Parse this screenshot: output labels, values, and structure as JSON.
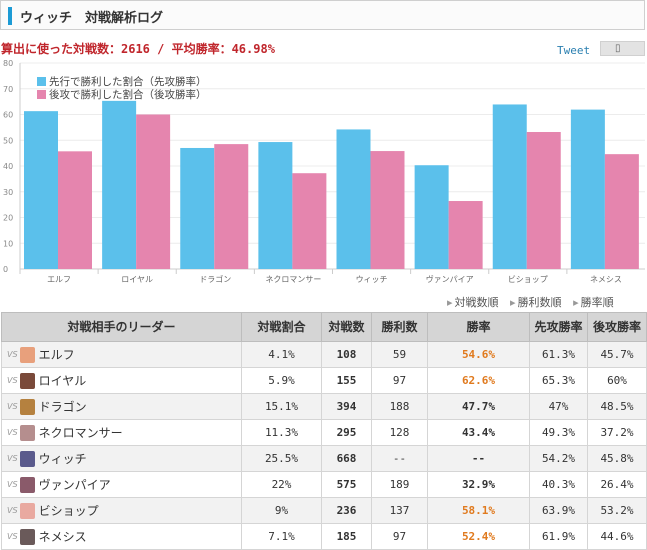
{
  "header": {
    "title": "ウィッチ　対戦解析ログ"
  },
  "stats_line": "算出に使った対戦数：2616 / 平均勝率：46.98%",
  "share": {
    "tweet": "Tweet",
    "icon": "page-icon"
  },
  "colors": {
    "first": "#5bc0eb",
    "second": "#e585ae",
    "highlight": "#e07a1e",
    "accent": "#1d9bd5"
  },
  "chart_data": {
    "type": "bar",
    "categories": [
      "エルフ",
      "ロイヤル",
      "ドラゴン",
      "ネクロマンサー",
      "ウィッチ",
      "ヴァンパイア",
      "ビショップ",
      "ネメシス"
    ],
    "series": [
      {
        "name": "先行で勝利した割合（先攻勝率）",
        "values": [
          61.3,
          65.3,
          47,
          49.3,
          54.2,
          40.3,
          63.9,
          61.9
        ]
      },
      {
        "name": "後攻で勝利した割合（後攻勝率）",
        "values": [
          45.7,
          60,
          48.5,
          37.2,
          45.8,
          26.4,
          53.2,
          44.6
        ]
      }
    ],
    "ylim": [
      0,
      80
    ],
    "yticks": [
      0,
      10,
      20,
      30,
      40,
      50,
      60,
      70,
      80
    ],
    "grid": true,
    "legend_position": "top-left"
  },
  "sort_links": [
    "対戦数順",
    "勝利数順",
    "勝率順"
  ],
  "table": {
    "headers": {
      "leader": "対戦相手のリーダー",
      "ratio": "対戦割合",
      "battles": "対戦数",
      "wins": "勝利数",
      "winrate": "勝率",
      "first": "先攻勝率",
      "second": "後攻勝率"
    },
    "vs": "VS",
    "rows": [
      {
        "name": "エルフ",
        "ratio": "4.1%",
        "battles": "108",
        "wins": "59",
        "winrate": "54.6%",
        "first": "61.3%",
        "second": "45.7%",
        "hi": true,
        "avatar": "#e8a07c"
      },
      {
        "name": "ロイヤル",
        "ratio": "5.9%",
        "battles": "155",
        "wins": "97",
        "winrate": "62.6%",
        "first": "65.3%",
        "second": "60%",
        "hi": true,
        "avatar": "#7a4a3a"
      },
      {
        "name": "ドラゴン",
        "ratio": "15.1%",
        "battles": "394",
        "wins": "188",
        "winrate": "47.7%",
        "first": "47%",
        "second": "48.5%",
        "hi": false,
        "avatar": "#b5813f"
      },
      {
        "name": "ネクロマンサー",
        "ratio": "11.3%",
        "battles": "295",
        "wins": "128",
        "winrate": "43.4%",
        "first": "49.3%",
        "second": "37.2%",
        "hi": false,
        "avatar": "#b58e8e"
      },
      {
        "name": "ウィッチ",
        "ratio": "25.5%",
        "battles": "668",
        "wins": "--",
        "winrate": "--",
        "first": "54.2%",
        "second": "45.8%",
        "hi": false,
        "avatar": "#5a5a8c"
      },
      {
        "name": "ヴァンパイア",
        "ratio": "22%",
        "battles": "575",
        "wins": "189",
        "winrate": "32.9%",
        "first": "40.3%",
        "second": "26.4%",
        "hi": false,
        "avatar": "#8a5a6a"
      },
      {
        "name": "ビショップ",
        "ratio": "9%",
        "battles": "236",
        "wins": "137",
        "winrate": "58.1%",
        "first": "63.9%",
        "second": "53.2%",
        "hi": true,
        "avatar": "#e9a9a0"
      },
      {
        "name": "ネメシス",
        "ratio": "7.1%",
        "battles": "185",
        "wins": "97",
        "winrate": "52.4%",
        "first": "61.9%",
        "second": "44.6%",
        "hi": true,
        "avatar": "#6a5a5a"
      }
    ]
  }
}
